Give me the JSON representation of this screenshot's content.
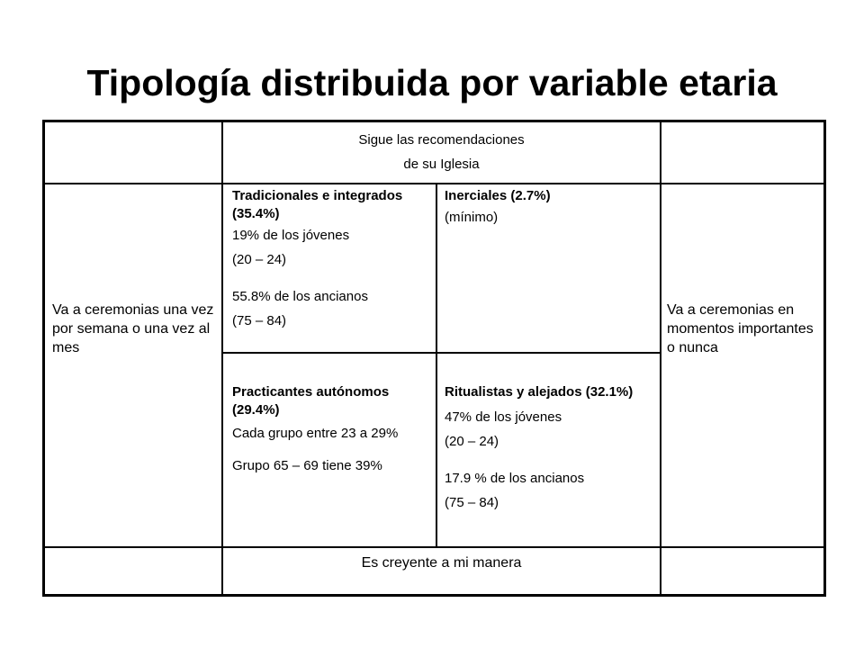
{
  "slide": {
    "title": "Tipología distribuida por variable etaria"
  },
  "table": {
    "top_header": {
      "line1": "Sigue las recomendaciones",
      "line2": "de su Iglesia"
    },
    "left_label": "Va a ceremonias una vez por semana o una vez al mes",
    "right_label": "Va a ceremonias en momentos importantes o nunca",
    "bottom_label": "Es creyente a mi manera",
    "quadrants": {
      "tradicionales": {
        "title": "Tradicionales e integrados (35.4%)",
        "l1": "19% de los jóvenes",
        "l2": "(20 – 24)",
        "l3": "55.8% de los ancianos",
        "l4": "(75 – 84)"
      },
      "inerciales": {
        "title": "Inerciales (2.7%)",
        "l1": "(mínimo)"
      },
      "practicantes": {
        "title": "Practicantes autónomos (29.4%)",
        "l1": "Cada grupo entre 23 a 29%",
        "l2": "Grupo 65 – 69 tiene 39%"
      },
      "ritualistas": {
        "title": "Ritualistas y alejados (32.1%)",
        "l1": "47% de los jóvenes",
        "l2": "(20 – 24)",
        "l3": "17.9 % de los ancianos",
        "l4": "(75 – 84)"
      }
    }
  }
}
